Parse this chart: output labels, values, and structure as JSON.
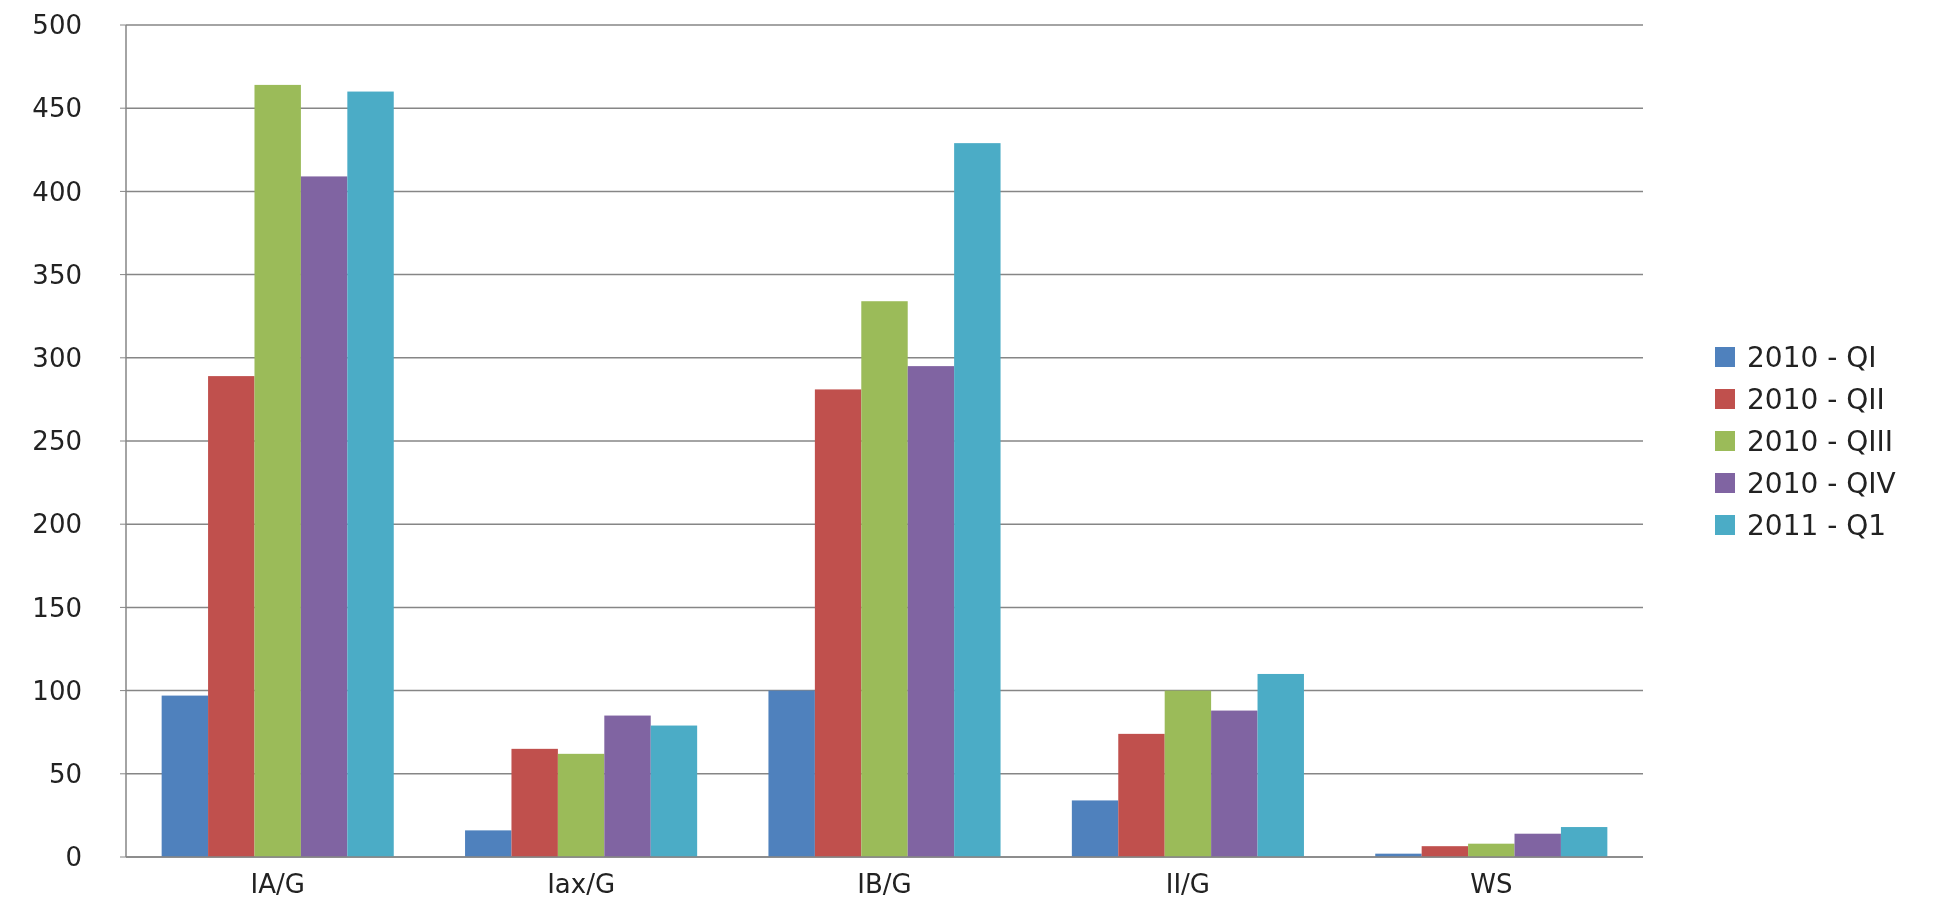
{
  "chart_data": {
    "type": "bar",
    "categories": [
      "IA/G",
      "Iax/G",
      "IB/G",
      "II/G",
      "WS"
    ],
    "series": [
      {
        "name": "2010 - QI",
        "color": "#4f81bd",
        "values": [
          97,
          16,
          100,
          34,
          2
        ]
      },
      {
        "name": "2010 - QII",
        "color": "#c0504d",
        "values": [
          289,
          65,
          281,
          74,
          6.5
        ]
      },
      {
        "name": "2010 - QIII",
        "color": "#9bbb59",
        "values": [
          464,
          62,
          334,
          100,
          8
        ]
      },
      {
        "name": "2010 - QIV",
        "color": "#8064a2",
        "values": [
          409,
          85,
          295,
          88,
          14
        ]
      },
      {
        "name": "2011 - Q1",
        "color": "#4bacc6",
        "values": [
          460,
          79,
          429,
          110,
          18
        ]
      }
    ],
    "ylim": [
      0,
      500
    ],
    "yticks": [
      0,
      50,
      100,
      150,
      200,
      250,
      300,
      350,
      400,
      450,
      500
    ],
    "grid": "y",
    "legend": "right"
  }
}
